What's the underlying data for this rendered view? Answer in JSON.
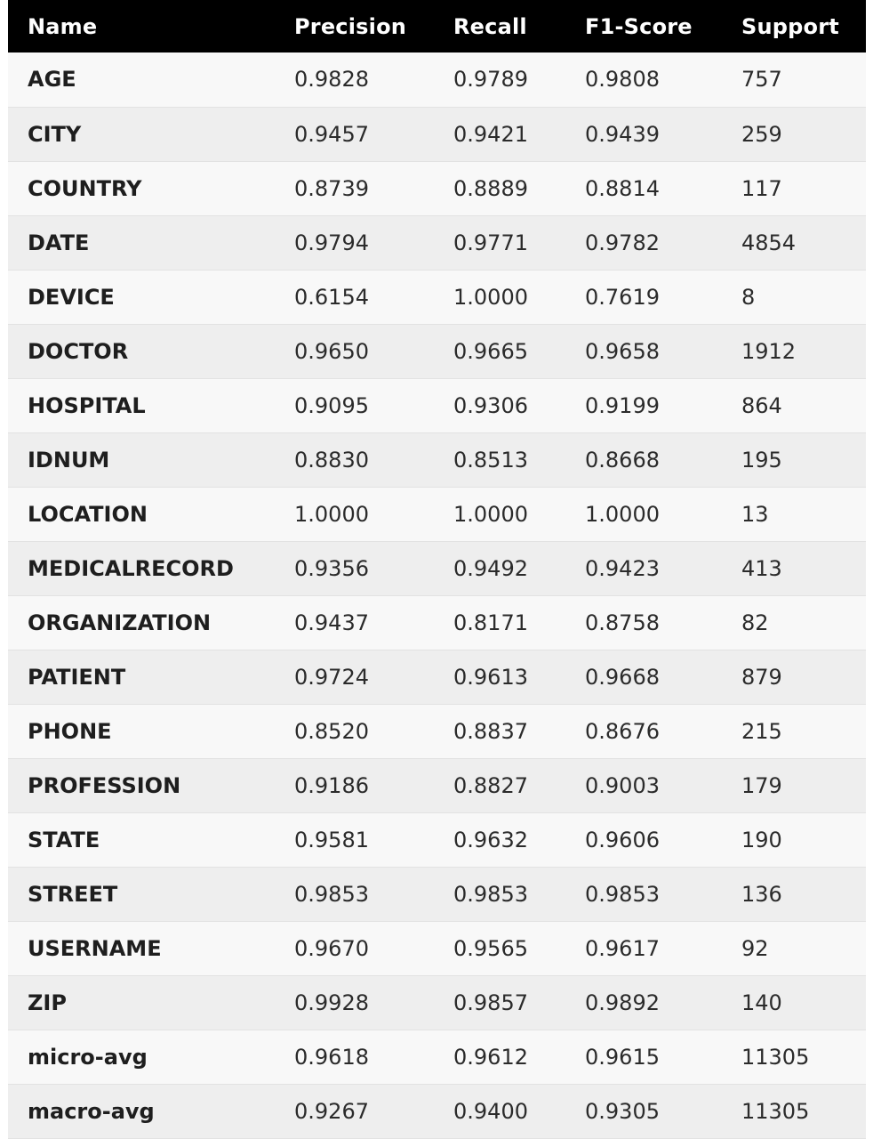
{
  "table": {
    "headers": [
      "Name",
      "Precision",
      "Recall",
      "F1-Score",
      "Support"
    ],
    "rows": [
      [
        "AGE",
        "0.9828",
        "0.9789",
        "0.9808",
        "757"
      ],
      [
        "CITY",
        "0.9457",
        "0.9421",
        "0.9439",
        "259"
      ],
      [
        "COUNTRY",
        "0.8739",
        "0.8889",
        "0.8814",
        "117"
      ],
      [
        "DATE",
        "0.9794",
        "0.9771",
        "0.9782",
        "4854"
      ],
      [
        "DEVICE",
        "0.6154",
        "1.0000",
        "0.7619",
        "8"
      ],
      [
        "DOCTOR",
        "0.9650",
        "0.9665",
        "0.9658",
        "1912"
      ],
      [
        "HOSPITAL",
        "0.9095",
        "0.9306",
        "0.9199",
        "864"
      ],
      [
        "IDNUM",
        "0.8830",
        "0.8513",
        "0.8668",
        "195"
      ],
      [
        "LOCATION",
        "1.0000",
        "1.0000",
        "1.0000",
        "13"
      ],
      [
        "MEDICALRECORD",
        "0.9356",
        "0.9492",
        "0.9423",
        "413"
      ],
      [
        "ORGANIZATION",
        "0.9437",
        "0.8171",
        "0.8758",
        "82"
      ],
      [
        "PATIENT",
        "0.9724",
        "0.9613",
        "0.9668",
        "879"
      ],
      [
        "PHONE",
        "0.8520",
        "0.8837",
        "0.8676",
        "215"
      ],
      [
        "PROFESSION",
        "0.9186",
        "0.8827",
        "0.9003",
        "179"
      ],
      [
        "STATE",
        "0.9581",
        "0.9632",
        "0.9606",
        "190"
      ],
      [
        "STREET",
        "0.9853",
        "0.9853",
        "0.9853",
        "136"
      ],
      [
        "USERNAME",
        "0.9670",
        "0.9565",
        "0.9617",
        "92"
      ],
      [
        "ZIP",
        "0.9928",
        "0.9857",
        "0.9892",
        "140"
      ],
      [
        "micro-avg",
        "0.9618",
        "0.9612",
        "0.9615",
        "11305"
      ],
      [
        "macro-avg",
        "0.9267",
        "0.9400",
        "0.9305",
        "11305"
      ]
    ]
  }
}
